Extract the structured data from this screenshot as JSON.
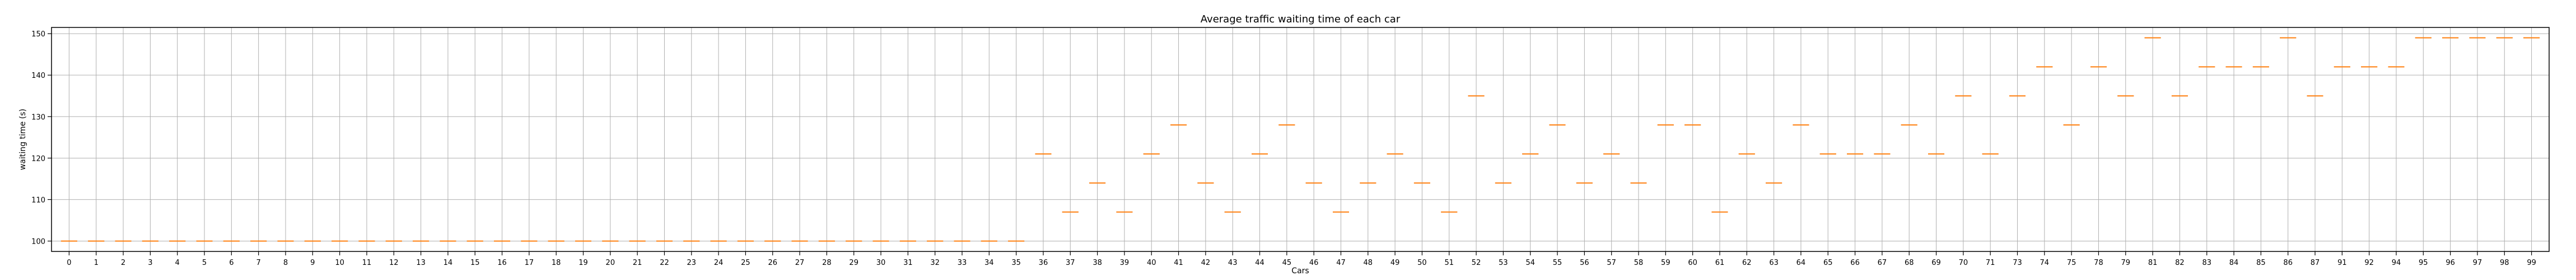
{
  "chart_data": {
    "type": "box",
    "title": "Average traffic waiting time of each car",
    "xlabel": "Cars",
    "ylabel": "waiting time (s)",
    "categories": [
      "0",
      "1",
      "2",
      "3",
      "4",
      "5",
      "6",
      "7",
      "8",
      "9",
      "10",
      "11",
      "12",
      "13",
      "14",
      "15",
      "16",
      "17",
      "18",
      "19",
      "20",
      "21",
      "22",
      "23",
      "24",
      "25",
      "26",
      "27",
      "28",
      "29",
      "30",
      "31",
      "32",
      "33",
      "34",
      "35",
      "36",
      "37",
      "38",
      "39",
      "40",
      "41",
      "42",
      "43",
      "44",
      "45",
      "46",
      "47",
      "48",
      "49",
      "50",
      "51",
      "52",
      "53",
      "54",
      "55",
      "56",
      "57",
      "58",
      "59",
      "60",
      "61",
      "62",
      "63",
      "64",
      "65",
      "66",
      "67",
      "68",
      "69",
      "70",
      "71",
      "73",
      "74",
      "75",
      "78",
      "79",
      "81",
      "82",
      "83",
      "84",
      "85",
      "86",
      "87",
      "91",
      "92",
      "94",
      "95",
      "96",
      "97",
      "98",
      "99"
    ],
    "values": [
      100,
      100,
      100,
      100,
      100,
      100,
      100,
      100,
      100,
      100,
      100,
      100,
      100,
      100,
      100,
      100,
      100,
      100,
      100,
      100,
      100,
      100,
      100,
      100,
      100,
      100,
      100,
      100,
      100,
      100,
      100,
      100,
      100,
      100,
      100,
      100,
      121,
      107,
      114,
      107,
      121,
      128,
      114,
      107,
      121,
      128,
      114,
      107,
      114,
      121,
      114,
      107,
      135,
      114,
      121,
      128,
      114,
      121,
      114,
      128,
      128,
      107,
      121,
      114,
      128,
      121,
      121,
      121,
      128,
      121,
      135,
      121,
      135,
      142,
      128,
      142,
      135,
      149,
      135,
      142,
      142,
      142,
      149,
      135,
      142,
      142,
      142,
      149,
      149,
      149,
      149,
      149
    ],
    "ylim": [
      97.5,
      151.5
    ],
    "yticks": [
      100,
      110,
      120,
      130,
      140,
      150
    ],
    "grid": true,
    "colors": {
      "median": "#ff7f0e",
      "box": "#000000",
      "grid": "#b0b0b0",
      "frame": "#000000"
    }
  }
}
